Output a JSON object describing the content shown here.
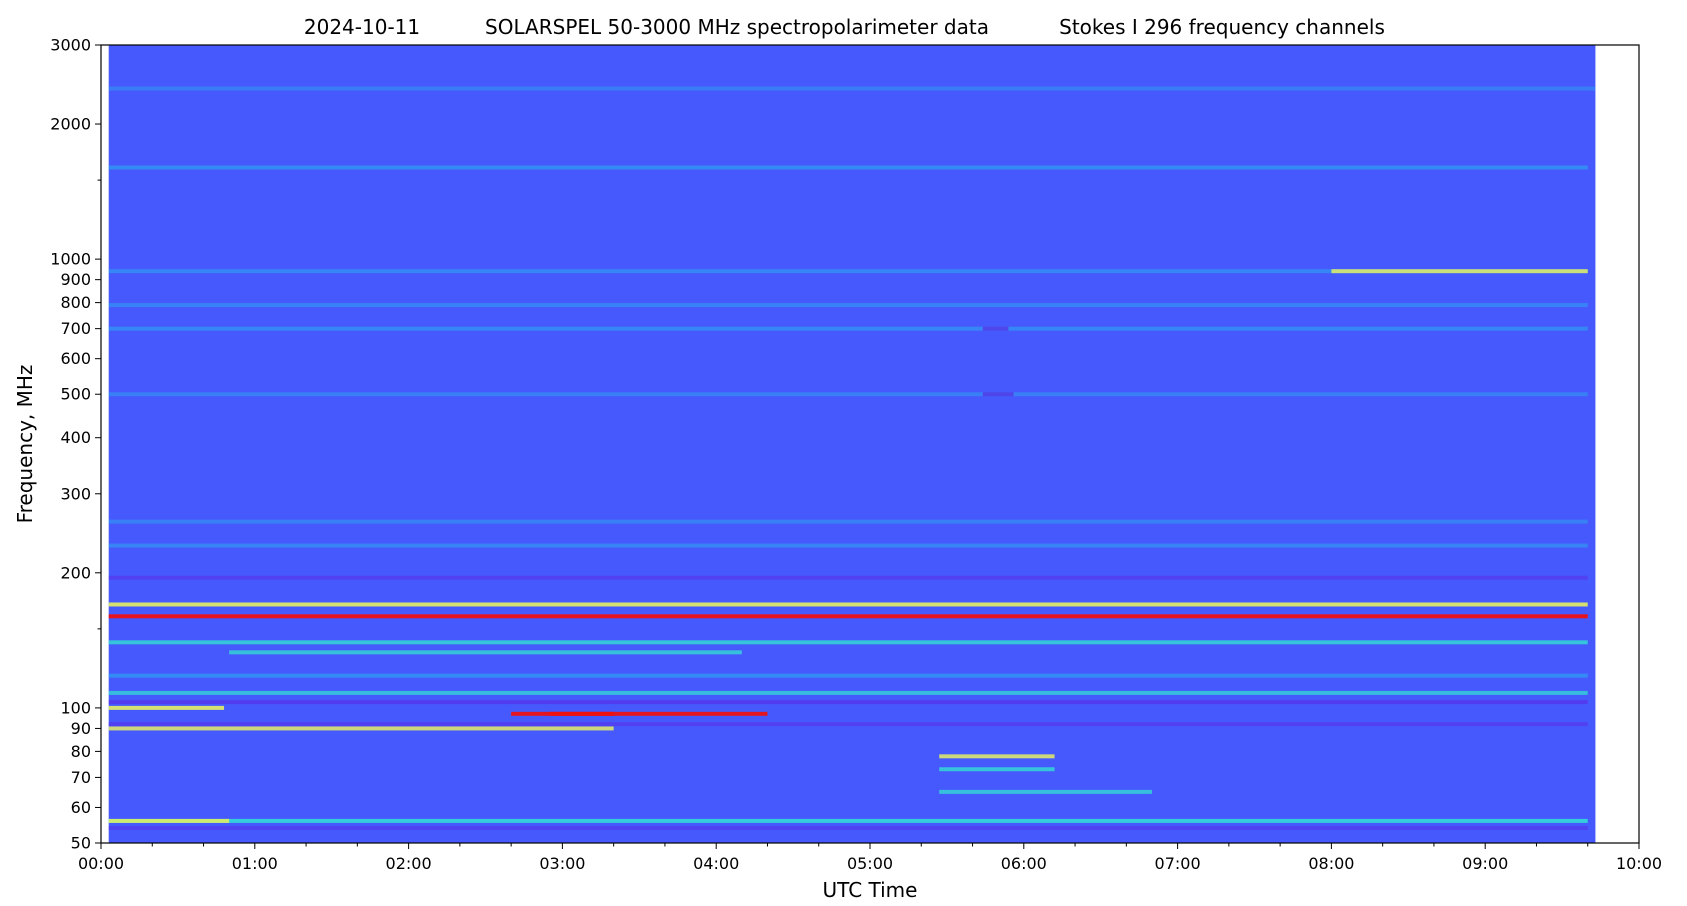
{
  "chart_data": {
    "type": "heatmap",
    "title_parts": [
      "2024-10-11",
      "SOLARSPEL   50-3000 MHz spectropolarimeter data",
      "Stokes I   296 frequency channels"
    ],
    "xlabel": "UTC Time",
    "ylabel": "Frequency, MHz",
    "x_scale": "time",
    "y_scale": "log",
    "xlim": [
      "00:00",
      "10:00"
    ],
    "ylim": [
      50,
      3000
    ],
    "data_span_utc": [
      "00:03",
      "09:43"
    ],
    "x_ticks": [
      {
        "label": "00:00",
        "value": 0
      },
      {
        "label": "01:00",
        "value": 60
      },
      {
        "label": "02:00",
        "value": 120
      },
      {
        "label": "03:00",
        "value": 180
      },
      {
        "label": "04:00",
        "value": 240
      },
      {
        "label": "05:00",
        "value": 300
      },
      {
        "label": "06:00",
        "value": 360
      },
      {
        "label": "07:00",
        "value": 420
      },
      {
        "label": "08:00",
        "value": 480
      },
      {
        "label": "09:00",
        "value": 540
      },
      {
        "label": "10:00",
        "value": 600
      }
    ],
    "y_ticks": [
      {
        "label": "3000",
        "value": 3000
      },
      {
        "label": "2000",
        "value": 2000
      },
      {
        "label": "1000",
        "value": 1000
      },
      {
        "label": "900",
        "value": 900
      },
      {
        "label": "800",
        "value": 800
      },
      {
        "label": "700",
        "value": 700
      },
      {
        "label": "600",
        "value": 600
      },
      {
        "label": "500",
        "value": 500
      },
      {
        "label": "400",
        "value": 400
      },
      {
        "label": "300",
        "value": 300
      },
      {
        "label": "200",
        "value": 200
      },
      {
        "label": "100",
        "value": 100
      },
      {
        "label": "90",
        "value": 90
      },
      {
        "label": "80",
        "value": 80
      },
      {
        "label": "70",
        "value": 70
      },
      {
        "label": "60",
        "value": 60
      },
      {
        "label": "50",
        "value": 50
      }
    ],
    "y_minor_ticks": [
      1500,
      150
    ],
    "colormap": {
      "background": "#4659fc",
      "low": "#5a2be6",
      "mid": "#2ba9f0",
      "high": "#30f0d0",
      "very_high": "#e8f060",
      "peak": "#f01010"
    },
    "features": [
      {
        "freq": 2400,
        "t_start": 0,
        "t_end": 600,
        "level": 0.15
      },
      {
        "freq": 1600,
        "t_start": 3,
        "t_end": 580,
        "level": 0.45
      },
      {
        "freq": 940,
        "t_start": 3,
        "t_end": 580,
        "level": 0.35
      },
      {
        "freq": 940,
        "t_start": 480,
        "t_end": 580,
        "level": 0.8
      },
      {
        "freq": 790,
        "t_start": 3,
        "t_end": 580,
        "level": 0.25
      },
      {
        "freq": 700,
        "t_start": 3,
        "t_end": 580,
        "level": 0.35
      },
      {
        "freq": 500,
        "t_start": 3,
        "t_end": 580,
        "level": 0.2
      },
      {
        "freq": 500,
        "t_start": 344,
        "t_end": 356,
        "level": -0.6
      },
      {
        "freq": 700,
        "t_start": 344,
        "t_end": 354,
        "level": -0.6
      },
      {
        "freq": 260,
        "t_start": 3,
        "t_end": 580,
        "level": 0.2
      },
      {
        "freq": 230,
        "t_start": 3,
        "t_end": 580,
        "level": 0.3
      },
      {
        "freq": 195,
        "t_start": 3,
        "t_end": 580,
        "level": -0.3
      },
      {
        "freq": 170,
        "t_start": 3,
        "t_end": 580,
        "level": 0.9
      },
      {
        "freq": 160,
        "t_start": 3,
        "t_end": 580,
        "level": 1.0
      },
      {
        "freq": 140,
        "t_start": 3,
        "t_end": 580,
        "level": 0.6
      },
      {
        "freq": 133,
        "t_start": 50,
        "t_end": 250,
        "level": 0.55
      },
      {
        "freq": 118,
        "t_start": 3,
        "t_end": 580,
        "level": 0.45
      },
      {
        "freq": 108,
        "t_start": 3,
        "t_end": 580,
        "level": 0.5
      },
      {
        "freq": 103,
        "t_start": 3,
        "t_end": 580,
        "level": -0.4
      },
      {
        "freq": 100,
        "t_start": 3,
        "t_end": 48,
        "level": 0.9
      },
      {
        "freq": 97,
        "t_start": 160,
        "t_end": 260,
        "level": 0.95
      },
      {
        "freq": 97,
        "t_start": 175,
        "t_end": 200,
        "level": 1.0
      },
      {
        "freq": 90,
        "t_start": 3,
        "t_end": 200,
        "level": 0.8
      },
      {
        "freq": 92,
        "t_start": 3,
        "t_end": 580,
        "level": -0.3
      },
      {
        "freq": 78,
        "t_start": 327,
        "t_end": 372,
        "level": 0.8
      },
      {
        "freq": 73,
        "t_start": 327,
        "t_end": 372,
        "level": 0.6
      },
      {
        "freq": 65,
        "t_start": 327,
        "t_end": 410,
        "level": 0.55
      },
      {
        "freq": 56,
        "t_start": 3,
        "t_end": 580,
        "level": 0.7
      },
      {
        "freq": 56,
        "t_start": 3,
        "t_end": 50,
        "level": 0.85
      },
      {
        "freq": 54,
        "t_start": 3,
        "t_end": 580,
        "level": -0.2
      }
    ]
  }
}
